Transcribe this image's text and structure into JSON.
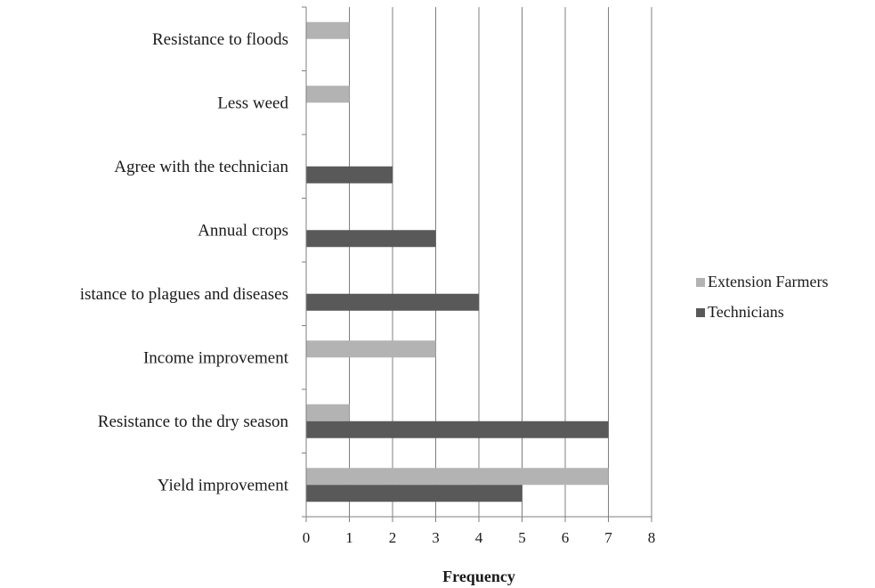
{
  "chart_data": {
    "type": "bar",
    "orientation": "horizontal",
    "categories": [
      "Yield improvement",
      "Resistance to the dry season",
      "Income improvement",
      "istance to plagues and diseases",
      "Annual crops",
      "Agree with the technician",
      "Less weed",
      "Resistance to floods"
    ],
    "series": [
      {
        "name": "Extension Farmers",
        "color": "#b3b3b3",
        "values": [
          7,
          1,
          3,
          0,
          0,
          0,
          1,
          1
        ]
      },
      {
        "name": "Technicians",
        "color": "#595959",
        "values": [
          5,
          7,
          0,
          4,
          3,
          2,
          0,
          0
        ]
      }
    ],
    "xlabel": "Frequency",
    "ylabel": "",
    "xlim": [
      0,
      8
    ],
    "xticks": [
      0,
      1,
      2,
      3,
      4,
      5,
      6,
      7,
      8
    ],
    "grid": "vertical",
    "legend": "right"
  }
}
